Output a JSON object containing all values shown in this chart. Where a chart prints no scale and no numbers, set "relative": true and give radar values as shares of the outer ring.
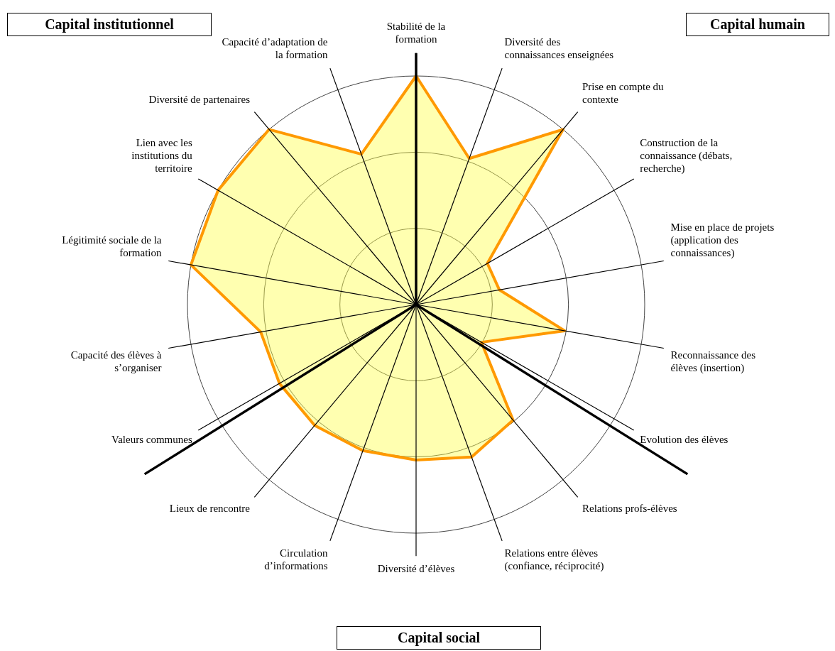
{
  "chart_data": {
    "type": "radar",
    "relative": true,
    "grid": true,
    "legend": false,
    "categories": [
      "Stabilité de la formation",
      "Diversité des connaissances enseignées",
      "Prise en compte du contexte",
      "Construction de la connaissance (débats, recherche)",
      "Mise en place de projets (application des connaissances)",
      "Reconnaissance des élèves (insertion)",
      "Evolution des élèves",
      "Relations profs-élèves",
      "Relations entre élèves (confiance, réciprocité)",
      "Diversité d’élèves",
      "Circulation d’informations",
      "Lieux de rencontre",
      "Valeurs communes",
      "Capacité des élèves à s’organiser",
      "Légitimité sociale de la formation",
      "Lien avec les institutions du territoire",
      "Diversité de partenaires",
      "Capacité d’adaptation de la formation"
    ],
    "series": [
      {
        "color": "#ff9900",
        "values": [
          1,
          0.68,
          1,
          0.36,
          0.37,
          0.66,
          0.33,
          0.66,
          0.71,
          0.68,
          0.68,
          0.69,
          0.69,
          0.69,
          1,
          1,
          1,
          0.7
        ]
      }
    ],
    "annotations": [
      "Capital institutionnel",
      "Capital humain",
      "Capital social"
    ]
  }
}
